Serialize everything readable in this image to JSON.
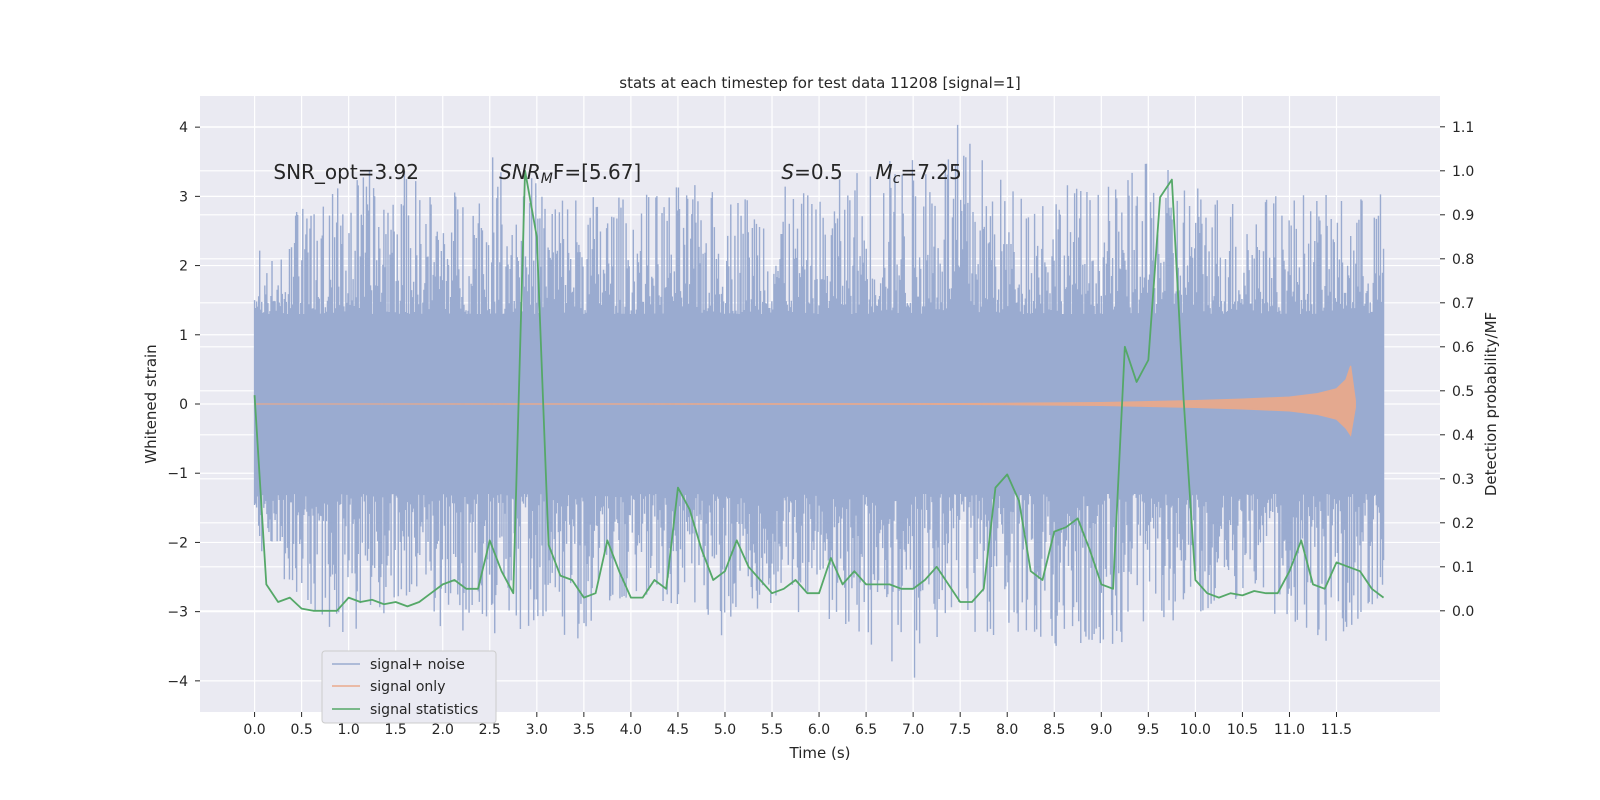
{
  "chart_data": {
    "type": "line",
    "title": "stats at each timestep for test data 11208 [signal=1]",
    "xlabel": "Time (s)",
    "ylabel": "Whitened strain",
    "y2label": "Detection probability/MF",
    "xlim": [
      -0.58,
      12.6
    ],
    "ylim": [
      -4.45,
      4.45
    ],
    "y2lim": [
      -0.23,
      1.17
    ],
    "x_ticks": [
      0.0,
      0.5,
      1.0,
      1.5,
      2.0,
      2.5,
      3.0,
      3.5,
      4.0,
      4.5,
      5.0,
      5.5,
      6.0,
      6.5,
      7.0,
      7.5,
      8.0,
      8.5,
      9.0,
      9.5,
      10.0,
      10.5,
      11.0,
      11.5
    ],
    "x_tick_labels": [
      "0.0",
      "0.5",
      "1.0",
      "1.5",
      "2.0",
      "2.5",
      "3.0",
      "3.5",
      "4.0",
      "4.5",
      "5.0",
      "5.5",
      "6.0",
      "6.5",
      "7.0",
      "7.5",
      "8.0",
      "8.5",
      "9.0",
      "9.5",
      "10.0",
      "10.5",
      "11.0",
      "11.5"
    ],
    "y_ticks": [
      -4,
      -3,
      -2,
      -1,
      0,
      1,
      2,
      3,
      4
    ],
    "y_tick_labels": [
      "−4",
      "−3",
      "−2",
      "−1",
      "0",
      "1",
      "2",
      "3",
      "4"
    ],
    "y2_ticks": [
      0.0,
      0.1,
      0.2,
      0.3,
      0.4,
      0.5,
      0.6,
      0.7,
      0.8,
      0.9,
      1.0,
      1.1
    ],
    "y2_tick_labels": [
      "0.0",
      "0.1",
      "0.2",
      "0.3",
      "0.4",
      "0.5",
      "0.6",
      "0.7",
      "0.8",
      "0.9",
      "1.0",
      "1.1"
    ],
    "grid": true,
    "legend_position": "lower-left",
    "annotations": [
      {
        "text": "SNR_opt=3.92",
        "x": 0.2,
        "y": 3.25
      },
      {
        "text": "SNR_MF=[5.67]",
        "base": "SNR",
        "sub": "M",
        "tail": "F=[5.67]",
        "x": 2.6,
        "y": 3.25
      },
      {
        "text": "S=0.5",
        "base": "S",
        "tail": "=0.5",
        "x": 5.6,
        "y": 3.25
      },
      {
        "text": "M_c=7.25",
        "base": "M",
        "sub": "c",
        "tail": "=7.25",
        "x": 6.6,
        "y": 3.25
      }
    ],
    "series": [
      {
        "name": "signal+ noise",
        "color": "#9aabd0",
        "envelope": {
          "x": [
            0.0,
            0.5,
            1.0,
            1.5,
            2.0,
            2.5,
            3.0,
            3.5,
            4.0,
            4.5,
            5.0,
            5.5,
            6.0,
            6.5,
            7.0,
            7.5,
            8.0,
            8.5,
            9.0,
            9.5,
            10.0,
            10.5,
            11.0,
            11.5,
            12.0
          ],
          "upper": [
            2.2,
            2.9,
            3.3,
            3.5,
            3.0,
            3.6,
            3.3,
            3.1,
            3.0,
            3.2,
            3.1,
            3.2,
            3.0,
            3.6,
            3.6,
            4.1,
            3.2,
            3.3,
            3.1,
            3.5,
            3.3,
            3.0,
            3.1,
            3.0,
            3.1
          ],
          "lower": [
            -2.0,
            -2.9,
            -3.5,
            -2.9,
            -3.3,
            -3.5,
            -3.2,
            -3.5,
            -2.9,
            -3.2,
            -3.5,
            -3.0,
            -3.1,
            -3.5,
            -4.0,
            -3.5,
            -3.3,
            -3.8,
            -3.6,
            -3.3,
            -3.1,
            -3.0,
            -3.3,
            -3.5,
            -2.8
          ]
        }
      },
      {
        "name": "signal only",
        "color": "#e9a98c",
        "envelope": {
          "x": [
            0.0,
            7.5,
            8.0,
            9.0,
            10.0,
            10.5,
            11.0,
            11.3,
            11.5,
            11.6,
            11.65,
            11.7
          ],
          "upper": [
            0.0,
            0.005,
            0.01,
            0.02,
            0.05,
            0.07,
            0.1,
            0.15,
            0.22,
            0.35,
            0.55,
            0.05
          ],
          "lower": [
            0.0,
            -0.005,
            -0.01,
            -0.02,
            -0.05,
            -0.07,
            -0.1,
            -0.15,
            -0.22,
            -0.35,
            -0.45,
            -0.05
          ]
        }
      },
      {
        "name": "signal statistics",
        "color": "#55a868",
        "axis": "right",
        "x": [
          0.0,
          0.125,
          0.25,
          0.375,
          0.5,
          0.625,
          0.75,
          0.875,
          1.0,
          1.125,
          1.25,
          1.375,
          1.5,
          1.625,
          1.75,
          1.875,
          2.0,
          2.125,
          2.25,
          2.375,
          2.5,
          2.625,
          2.75,
          2.875,
          3.0,
          3.125,
          3.25,
          3.375,
          3.5,
          3.625,
          3.75,
          3.875,
          4.0,
          4.125,
          4.25,
          4.375,
          4.5,
          4.625,
          4.75,
          4.875,
          5.0,
          5.125,
          5.25,
          5.375,
          5.5,
          5.625,
          5.75,
          5.875,
          6.0,
          6.125,
          6.25,
          6.375,
          6.5,
          6.625,
          6.75,
          6.875,
          7.0,
          7.125,
          7.25,
          7.375,
          7.5,
          7.625,
          7.75,
          7.875,
          8.0,
          8.125,
          8.25,
          8.375,
          8.5,
          8.625,
          8.75,
          8.875,
          9.0,
          9.125,
          9.25,
          9.375,
          9.5,
          9.625,
          9.75,
          9.875,
          10.0,
          10.125,
          10.25,
          10.375,
          10.5,
          10.625,
          10.75,
          10.875,
          11.0,
          11.125,
          11.25,
          11.375,
          11.5,
          11.625,
          11.75,
          11.875,
          12.0
        ],
        "y": [
          0.49,
          0.06,
          0.02,
          0.03,
          0.005,
          0.0,
          0.0,
          0.0,
          0.03,
          0.02,
          0.025,
          0.015,
          0.02,
          0.01,
          0.02,
          0.04,
          0.06,
          0.07,
          0.05,
          0.05,
          0.16,
          0.09,
          0.04,
          1.0,
          0.85,
          0.15,
          0.08,
          0.07,
          0.03,
          0.04,
          0.16,
          0.09,
          0.03,
          0.03,
          0.07,
          0.05,
          0.28,
          0.23,
          0.14,
          0.07,
          0.09,
          0.16,
          0.1,
          0.07,
          0.04,
          0.05,
          0.07,
          0.04,
          0.04,
          0.12,
          0.06,
          0.09,
          0.06,
          0.06,
          0.06,
          0.05,
          0.05,
          0.07,
          0.1,
          0.06,
          0.02,
          0.02,
          0.05,
          0.28,
          0.31,
          0.25,
          0.09,
          0.07,
          0.18,
          0.19,
          0.21,
          0.14,
          0.06,
          0.05,
          0.6,
          0.52,
          0.57,
          0.94,
          0.98,
          0.48,
          0.07,
          0.04,
          0.03,
          0.04,
          0.035,
          0.045,
          0.04,
          0.04,
          0.09,
          0.16,
          0.06,
          0.05,
          0.11,
          0.1,
          0.09,
          0.05,
          0.03
        ]
      }
    ]
  }
}
